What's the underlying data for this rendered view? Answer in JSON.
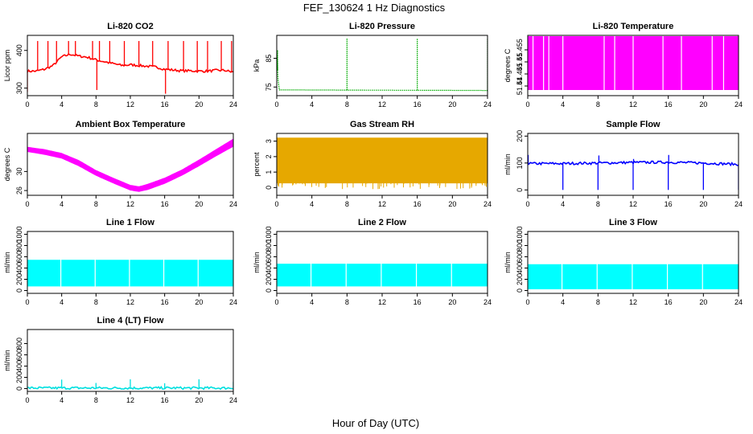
{
  "figure": {
    "title": "FEF_130624  1 Hz Diagnostics",
    "xlabel": "Hour of Day (UTC)"
  },
  "chart_data": [
    {
      "type": "line",
      "title": "Li-820 CO2",
      "ylabel": "Licor ppm",
      "color": "#ff0000",
      "xlim": [
        0,
        24
      ],
      "xticks": [
        0,
        4,
        8,
        12,
        16,
        20,
        24
      ],
      "ylim": [
        280,
        440
      ],
      "yticks": [
        300,
        400
      ],
      "style": "spiky-line",
      "series": [
        {
          "x": [
            0,
            1,
            2,
            3,
            4,
            5,
            6,
            7,
            8,
            9,
            10,
            11,
            12,
            13,
            14,
            15,
            16,
            17,
            18,
            19,
            20,
            21,
            22,
            23,
            24
          ],
          "y": [
            345,
            345,
            350,
            360,
            383,
            390,
            385,
            382,
            375,
            370,
            365,
            360,
            362,
            360,
            358,
            356,
            350,
            348,
            346,
            346,
            345,
            345,
            347,
            347,
            342
          ]
        }
      ],
      "spikes": [
        {
          "x": 0.0,
          "y": 290
        },
        {
          "x": 1.2,
          "y": 425
        },
        {
          "x": 2.4,
          "y": 425
        },
        {
          "x": 3.4,
          "y": 425
        },
        {
          "x": 4.8,
          "y": 425
        },
        {
          "x": 5.6,
          "y": 425
        },
        {
          "x": 7.6,
          "y": 425
        },
        {
          "x": 8.1,
          "y": 295
        },
        {
          "x": 8.4,
          "y": 425
        },
        {
          "x": 9.6,
          "y": 425
        },
        {
          "x": 11.3,
          "y": 425
        },
        {
          "x": 13.0,
          "y": 425
        },
        {
          "x": 14.6,
          "y": 425
        },
        {
          "x": 16.1,
          "y": 285
        },
        {
          "x": 16.4,
          "y": 425
        },
        {
          "x": 18.2,
          "y": 425
        },
        {
          "x": 19.8,
          "y": 425
        },
        {
          "x": 21.0,
          "y": 425
        },
        {
          "x": 22.6,
          "y": 425
        },
        {
          "x": 23.8,
          "y": 425
        }
      ]
    },
    {
      "type": "line",
      "title": "Li-820 Pressure",
      "ylabel": "kPa",
      "color": "#00aa00",
      "xlim": [
        0,
        24
      ],
      "xticks": [
        0,
        4,
        8,
        12,
        16,
        20,
        24
      ],
      "ylim": [
        72,
        93
      ],
      "yticks": [
        75,
        85
      ],
      "style": "dotted-line",
      "series": [
        {
          "x": [
            0,
            0.2,
            24
          ],
          "y": [
            88,
            74,
            73.8
          ]
        }
      ],
      "spikes": [
        {
          "x": 0.1,
          "y": 88
        },
        {
          "x": 8.0,
          "y": 92
        },
        {
          "x": 16.0,
          "y": 92
        },
        {
          "x": 24.0,
          "y": 92
        }
      ]
    },
    {
      "type": "area",
      "title": "Li-820 Temperature",
      "ylabel": "degrees C",
      "color": "#ff00ff",
      "xlim": [
        0,
        24
      ],
      "xticks": [
        0,
        4,
        8,
        12,
        16,
        20,
        24
      ],
      "ylim": [
        51.436,
        51.461
      ],
      "yticks": [
        51.44,
        51.445,
        51.45,
        51.455
      ],
      "style": "band",
      "band": {
        "x": [
          0,
          24
        ],
        "low": 51.4385,
        "high": 51.4605
      },
      "gaps": [
        0.6,
        1.8,
        2.4,
        4.0,
        8.7,
        9.9,
        12.0,
        15.4,
        17.5,
        21.0,
        22.3
      ]
    },
    {
      "type": "area",
      "title": "Ambient Box Temperature",
      "ylabel": "degrees C",
      "color": "#ff00ff",
      "xlim": [
        0,
        24
      ],
      "xticks": [
        0,
        4,
        8,
        12,
        16,
        20,
        24
      ],
      "ylim": [
        25,
        38
      ],
      "yticks": [
        26,
        30
      ],
      "style": "band",
      "band": {
        "x": [
          0,
          2,
          4,
          6,
          8,
          10,
          12,
          13,
          14,
          16,
          18,
          20,
          22,
          24
        ],
        "low": [
          34.2,
          33.6,
          32.8,
          31.2,
          29.2,
          27.6,
          26.1,
          25.8,
          26.2,
          27.5,
          29.2,
          31.2,
          33.3,
          35.3
        ],
        "high": [
          35.1,
          34.6,
          33.8,
          32.3,
          30.2,
          28.6,
          27.1,
          26.8,
          27.3,
          28.6,
          30.3,
          32.4,
          34.6,
          36.8
        ]
      },
      "gaps": []
    },
    {
      "type": "area",
      "title": "Gas Stream RH",
      "ylabel": "percent",
      "color": "#e6a800",
      "xlim": [
        0,
        24
      ],
      "xticks": [
        0,
        4,
        8,
        12,
        16,
        20,
        24
      ],
      "ylim": [
        -0.5,
        3.5
      ],
      "yticks": [
        0,
        1,
        2,
        3
      ],
      "style": "noisy-band",
      "band": {
        "x": [
          0,
          24
        ],
        "low": 0.3,
        "high": 3.2
      },
      "gaps": []
    },
    {
      "type": "line",
      "title": "Sample Flow",
      "ylabel": "ml/min",
      "color": "#0000ff",
      "xlim": [
        0,
        24
      ],
      "xticks": [
        0,
        4,
        8,
        12,
        16,
        20,
        24
      ],
      "ylim": [
        -20,
        210
      ],
      "yticks": [
        0,
        100,
        200
      ],
      "style": "spiky-line",
      "series": [
        {
          "x": [
            0,
            4,
            8,
            12,
            16,
            20,
            24
          ],
          "y": [
            98,
            98,
            100,
            102,
            103,
            100,
            95
          ]
        }
      ],
      "spikes": [
        {
          "x": 0.05,
          "y": 130
        },
        {
          "x": 4.0,
          "y": 0
        },
        {
          "x": 8.0,
          "y": 0
        },
        {
          "x": 8.1,
          "y": 128
        },
        {
          "x": 12.0,
          "y": 0
        },
        {
          "x": 12.05,
          "y": 115
        },
        {
          "x": 16.0,
          "y": 0
        },
        {
          "x": 16.05,
          "y": 130
        },
        {
          "x": 20.0,
          "y": 0
        },
        {
          "x": 20.05,
          "y": 100
        },
        {
          "x": 24.0,
          "y": 0
        }
      ]
    },
    {
      "type": "area",
      "title": "Line 1 Flow",
      "ylabel": "ml/min",
      "color": "#00ffff",
      "xlim": [
        0,
        24
      ],
      "xticks": [
        0,
        4,
        8,
        12,
        16,
        20,
        24
      ],
      "ylim": [
        -50,
        1050
      ],
      "yticks": [
        0,
        200,
        400,
        600,
        800,
        1000
      ],
      "style": "band",
      "band": {
        "x": [
          0,
          24
        ],
        "low": 80,
        "high": 540
      },
      "gaps": [
        3.9,
        7.9,
        11.9,
        15.9,
        19.9
      ]
    },
    {
      "type": "area",
      "title": "Line 2 Flow",
      "ylabel": "ml/min",
      "color": "#00ffff",
      "xlim": [
        0,
        24
      ],
      "xticks": [
        0,
        4,
        8,
        12,
        16,
        20,
        24
      ],
      "ylim": [
        -50,
        1050
      ],
      "yticks": [
        0,
        200,
        400,
        600,
        800,
        1000
      ],
      "style": "band",
      "band": {
        "x": [
          0,
          24
        ],
        "low": 80,
        "high": 470
      },
      "gaps": [
        3.9,
        7.9,
        11.9,
        15.9,
        19.9
      ]
    },
    {
      "type": "area",
      "title": "Line 3 Flow",
      "ylabel": "ml/min",
      "color": "#00ffff",
      "xlim": [
        0,
        24
      ],
      "xticks": [
        0,
        4,
        8,
        12,
        16,
        20,
        24
      ],
      "ylim": [
        -50,
        1050
      ],
      "yticks": [
        0,
        200,
        400,
        600,
        800,
        1000
      ],
      "style": "band",
      "band": {
        "x": [
          0,
          24
        ],
        "low": 30,
        "high": 460
      },
      "gaps": [
        3.9,
        7.9,
        11.9,
        15.9,
        19.9
      ]
    },
    {
      "type": "line",
      "title": "Line 4 (LT) Flow",
      "ylabel": "ml/min",
      "color": "#00e0e0",
      "xlim": [
        0,
        24
      ],
      "xticks": [
        0,
        4,
        8,
        12,
        16,
        20,
        24
      ],
      "ylim": [
        -50,
        1050
      ],
      "yticks": [
        0,
        200,
        400,
        600,
        800
      ],
      "style": "spiky-line",
      "series": [
        {
          "x": [
            0,
            24
          ],
          "y": [
            10,
            10
          ]
        }
      ],
      "spikes": [
        {
          "x": 4.0,
          "y": 160
        },
        {
          "x": 8.0,
          "y": 100
        },
        {
          "x": 12.0,
          "y": 165
        },
        {
          "x": 16.0,
          "y": 95
        },
        {
          "x": 20.0,
          "y": 165
        },
        {
          "x": 24.0,
          "y": 120
        }
      ]
    }
  ]
}
